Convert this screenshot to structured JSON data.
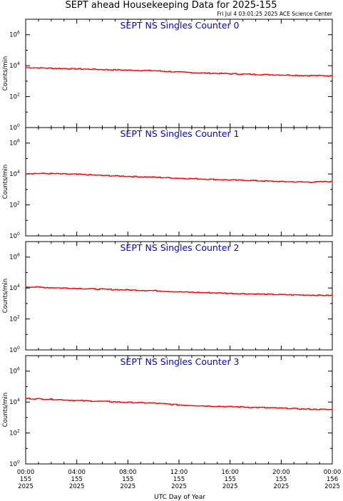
{
  "title": "SEPT ahead Housekeeping Data for 2025-155",
  "timestamp": "Fri Jul  4 03:01:25 2025 ACE Science Center",
  "colors": {
    "line": "#ff0000",
    "panel_title": "#0000ff",
    "axis": "#000000"
  },
  "chart_data": [
    {
      "type": "line",
      "title": "SEPT NS Singles Counter 0",
      "ylabel": "Counts/min",
      "yscale": "log",
      "ylim": [
        1,
        10000000
      ],
      "ytick_labels": [
        "10",
        "10",
        "10",
        "10"
      ],
      "ytick_exponents": [
        "0",
        "2",
        "4",
        "6"
      ],
      "xlim": [
        0,
        24
      ],
      "x": [
        0,
        2,
        4,
        6,
        8,
        10,
        12,
        14,
        16,
        18,
        20,
        22,
        24
      ],
      "series": [
        {
          "values": [
            7500,
            6800,
            6200,
            5600,
            5100,
            4700,
            3800,
            3300,
            3000,
            2700,
            2500,
            2300,
            2200
          ]
        }
      ]
    },
    {
      "type": "line",
      "title": "SEPT NS Singles Counter 1",
      "ylabel": "Counts/min",
      "yscale": "log",
      "ylim": [
        1,
        10000000
      ],
      "ytick_labels": [
        "10",
        "10",
        "10",
        "10"
      ],
      "ytick_exponents": [
        "0",
        "2",
        "4",
        "6"
      ],
      "xlim": [
        0,
        24
      ],
      "x": [
        0,
        2,
        4,
        6,
        8,
        10,
        12,
        14,
        16,
        18,
        20,
        22,
        24
      ],
      "series": [
        {
          "values": [
            11000,
            10500,
            9500,
            8000,
            7000,
            6200,
            5300,
            4700,
            4100,
            3700,
            3200,
            3000,
            3200
          ]
        }
      ]
    },
    {
      "type": "line",
      "title": "SEPT NS Singles Counter 2",
      "ylabel": "Counts/min",
      "yscale": "log",
      "ylim": [
        1,
        10000000
      ],
      "ytick_labels": [
        "10",
        "10",
        "10",
        "10"
      ],
      "ytick_exponents": [
        "0",
        "2",
        "4",
        "6"
      ],
      "xlim": [
        0,
        24
      ],
      "x": [
        0,
        2,
        4,
        6,
        8,
        10,
        12,
        14,
        16,
        18,
        20,
        22,
        24
      ],
      "series": [
        {
          "values": [
            12000,
            10500,
            9400,
            8300,
            7500,
            6800,
            5600,
            5000,
            4500,
            4100,
            3700,
            3500,
            3300
          ]
        }
      ]
    },
    {
      "type": "line",
      "title": "SEPT NS Singles Counter 3",
      "ylabel": "Counts/min",
      "yscale": "log",
      "ylim": [
        1,
        10000000
      ],
      "ytick_labels": [
        "10",
        "10",
        "10",
        "10"
      ],
      "ytick_exponents": [
        "0",
        "2",
        "4",
        "6"
      ],
      "xlim": [
        0,
        24
      ],
      "x": [
        0,
        2,
        4,
        6,
        8,
        10,
        12,
        14,
        16,
        18,
        20,
        22,
        24
      ],
      "series": [
        {
          "values": [
            17000,
            15000,
            12500,
            11000,
            9500,
            8500,
            6500,
            5600,
            5000,
            4500,
            4000,
            3500,
            3200
          ]
        }
      ]
    }
  ],
  "x_axis": {
    "label": "UTC Day of Year",
    "ticks": [
      {
        "time": "00:00",
        "day": "155",
        "year": "2025"
      },
      {
        "time": "04:00",
        "day": "155",
        "year": "2025"
      },
      {
        "time": "08:00",
        "day": "155",
        "year": "2025"
      },
      {
        "time": "12:00",
        "day": "155",
        "year": "2025"
      },
      {
        "time": "16:00",
        "day": "155",
        "year": "2025"
      },
      {
        "time": "20:00",
        "day": "155",
        "year": "2025"
      },
      {
        "time": "00:00",
        "day": "156",
        "year": "2025"
      }
    ]
  }
}
